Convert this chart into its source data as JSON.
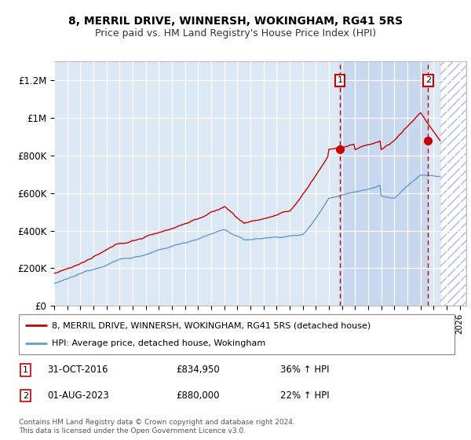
{
  "title": "8, MERRIL DRIVE, WINNERSH, WOKINGHAM, RG41 5RS",
  "subtitle": "Price paid vs. HM Land Registry's House Price Index (HPI)",
  "yticks": [
    0,
    200000,
    400000,
    600000,
    800000,
    1000000,
    1200000
  ],
  "ytick_labels": [
    "£0",
    "£200K",
    "£400K",
    "£600K",
    "£800K",
    "£1M",
    "£1.2M"
  ],
  "xmin": 1995.0,
  "xmax": 2026.5,
  "ymin": 0,
  "ymax": 1300000,
  "transaction1_x": 2016.833,
  "transaction1_y": 834950,
  "transaction2_x": 2023.583,
  "transaction2_y": 880000,
  "legend1": "8, MERRIL DRIVE, WINNERSH, WOKINGHAM, RG41 5RS (detached house)",
  "legend2": "HPI: Average price, detached house, Wokingham",
  "ann1_date": "31-OCT-2016",
  "ann1_price": "£834,950",
  "ann1_hpi": "36% ↑ HPI",
  "ann2_date": "01-AUG-2023",
  "ann2_price": "£880,000",
  "ann2_hpi": "22% ↑ HPI",
  "footnote": "Contains HM Land Registry data © Crown copyright and database right 2024.\nThis data is licensed under the Open Government Licence v3.0.",
  "red_color": "#cc0000",
  "blue_color": "#6699cc",
  "bg_color": "#dde8f5",
  "shaded_color": "#c8d8ee",
  "hatch_start": 2024.5,
  "title_fontsize": 10,
  "subtitle_fontsize": 9
}
